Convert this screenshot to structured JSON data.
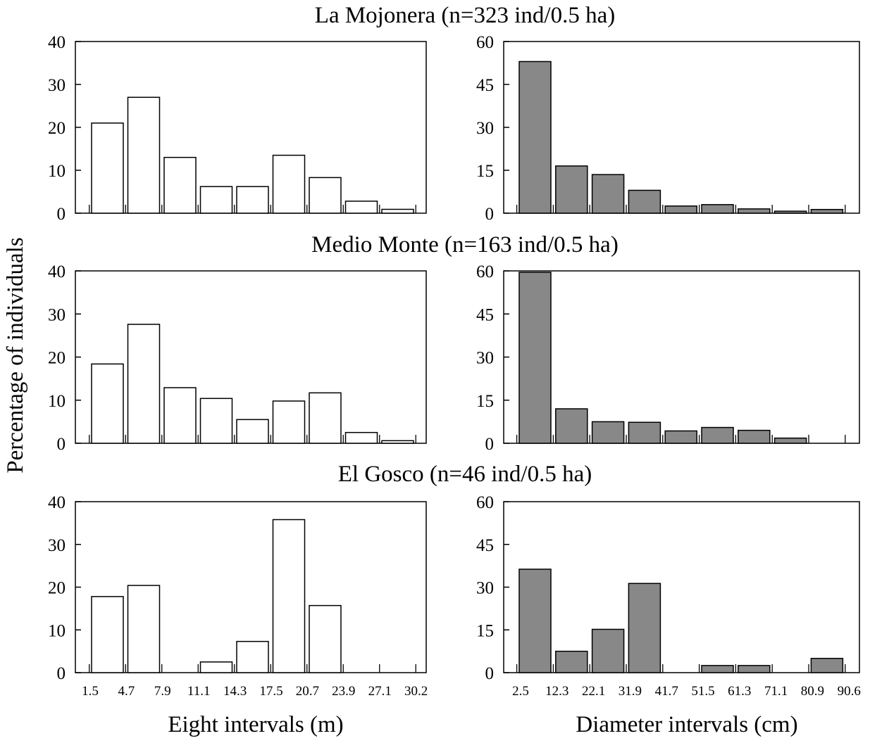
{
  "figure": {
    "ylabel": "Percentage of individuals",
    "height_xlabel": "Eight intervals (m)",
    "diameter_xlabel": "Diameter intervals (cm)",
    "height_ticks": [
      "1.5",
      "4.7",
      "7.9",
      "11.1",
      "14.3",
      "17.5",
      "20.7",
      "23.9",
      "27.1",
      "30.2"
    ],
    "diameter_ticks": [
      "2.5",
      "12.3",
      "22.1",
      "31.9",
      "41.7",
      "51.5",
      "61.3",
      "71.1",
      "80.9",
      "90.6"
    ],
    "height_fill": "#ffffff",
    "diameter_fill": "#888888"
  },
  "chart_data": [
    {
      "type": "bar",
      "site": "La Mojonera",
      "title": "La Mojonera (n=323 ind/0.5 ha)",
      "variable": "height",
      "xlabel": "Eight intervals (m)",
      "ylabel": "Percentage of individuals",
      "categories": [
        "1.5-4.7",
        "4.7-7.9",
        "7.9-11.1",
        "11.1-14.3",
        "14.3-17.5",
        "17.5-20.7",
        "20.7-23.9",
        "23.9-27.1",
        "27.1-30.2"
      ],
      "values": [
        21,
        27,
        13,
        6.2,
        6.2,
        13.5,
        8.3,
        2.8,
        0.9
      ],
      "ylim": [
        0,
        40
      ],
      "yticks": [
        0,
        10,
        20,
        30,
        40
      ]
    },
    {
      "type": "bar",
      "site": "La Mojonera",
      "title": "La Mojonera (n=323 ind/0.5 ha)",
      "variable": "diameter",
      "xlabel": "Diameter intervals (cm)",
      "ylabel": "Percentage of individuals",
      "categories": [
        "2.5-12.3",
        "12.3-22.1",
        "22.1-31.9",
        "31.9-41.7",
        "41.7-51.5",
        "51.5-61.3",
        "61.3-71.1",
        "71.1-80.9",
        "80.9-90.6"
      ],
      "values": [
        53,
        16.5,
        13.5,
        8,
        2.5,
        3,
        1.5,
        0.7,
        1.3
      ],
      "ylim": [
        0,
        60
      ],
      "yticks": [
        0,
        15,
        30,
        45,
        60
      ]
    },
    {
      "type": "bar",
      "site": "Medio Monte",
      "title": "Medio Monte (n=163 ind/0.5 ha)",
      "variable": "height",
      "xlabel": "Eight intervals (m)",
      "ylabel": "Percentage of individuals",
      "categories": [
        "1.5-4.7",
        "4.7-7.9",
        "7.9-11.1",
        "11.1-14.3",
        "14.3-17.5",
        "17.5-20.7",
        "20.7-23.9",
        "23.9-27.1",
        "27.1-30.2"
      ],
      "values": [
        18.4,
        27.6,
        12.9,
        10.4,
        5.5,
        9.8,
        11.7,
        2.5,
        0.6
      ],
      "ylim": [
        0,
        40
      ],
      "yticks": [
        0,
        10,
        20,
        30,
        40
      ]
    },
    {
      "type": "bar",
      "site": "Medio Monte",
      "title": "Medio Monte (n=163 ind/0.5 ha)",
      "variable": "diameter",
      "xlabel": "Diameter intervals (cm)",
      "ylabel": "Percentage of individuals",
      "categories": [
        "2.5-12.3",
        "12.3-22.1",
        "22.1-31.9",
        "31.9-41.7",
        "41.7-51.5",
        "51.5-61.3",
        "61.3-71.1",
        "71.1-80.9",
        "80.9-90.6"
      ],
      "values": [
        59.5,
        12,
        7.5,
        7.3,
        4.3,
        5.5,
        4.5,
        1.8,
        0
      ],
      "ylim": [
        0,
        60
      ],
      "yticks": [
        0,
        15,
        30,
        45,
        60
      ]
    },
    {
      "type": "bar",
      "site": "El Gosco",
      "title": "El Gosco (n=46 ind/0.5 ha)",
      "variable": "height",
      "xlabel": "Eight intervals (m)",
      "ylabel": "Percentage of individuals",
      "categories": [
        "1.5-4.7",
        "4.7-7.9",
        "7.9-11.1",
        "11.1-14.3",
        "14.3-17.5",
        "17.5-20.7",
        "20.7-23.9",
        "23.9-27.1",
        "27.1-30.2"
      ],
      "values": [
        17.8,
        20.4,
        0,
        2.5,
        7.3,
        35.8,
        15.7,
        0,
        0
      ],
      "ylim": [
        0,
        40
      ],
      "yticks": [
        0,
        10,
        20,
        30,
        40
      ]
    },
    {
      "type": "bar",
      "site": "El Gosco",
      "title": "El Gosco (n=46 ind/0.5 ha)",
      "variable": "diameter",
      "xlabel": "Diameter intervals (cm)",
      "ylabel": "Percentage of individuals",
      "categories": [
        "2.5-12.3",
        "12.3-22.1",
        "22.1-31.9",
        "31.9-41.7",
        "41.7-51.5",
        "51.5-61.3",
        "61.3-71.1",
        "71.1-80.9",
        "80.9-90.6"
      ],
      "values": [
        36.3,
        7.5,
        15.2,
        31.3,
        0,
        2.5,
        2.5,
        0,
        5
      ],
      "ylim": [
        0,
        60
      ],
      "yticks": [
        0,
        15,
        30,
        45,
        60
      ]
    }
  ]
}
